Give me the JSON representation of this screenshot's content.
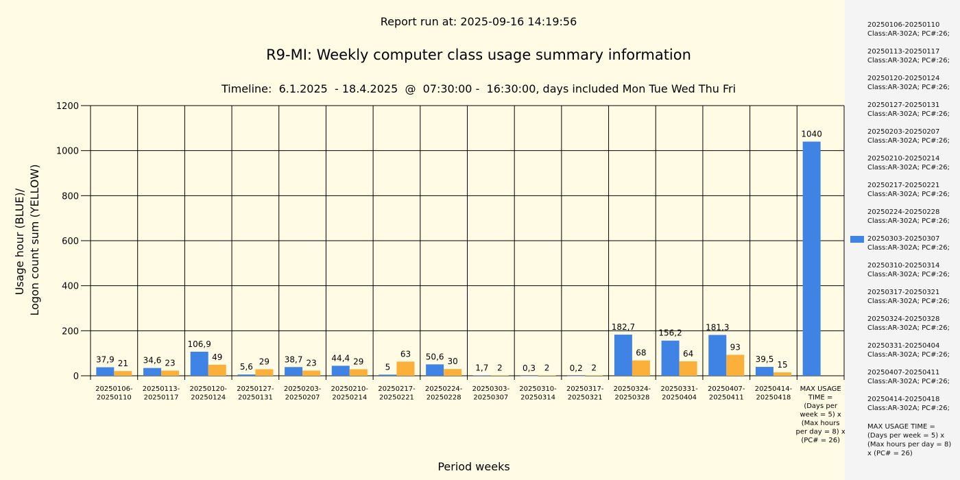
{
  "header": {
    "report_run": "Report run at: 2025-09-16 14:19:56",
    "timeline": "Timeline:  6.1.2025  - 18.4.2025  @  07:30:00 -  16:30:00, days included Mon Tue Wed Thu Fri"
  },
  "colors": {
    "usage_bar": "#3f84e5",
    "logon_bar": "#fbb03b",
    "plot_background": "#fffbe4",
    "legend_background": "#f4f4f4"
  },
  "legend": {
    "position": "right",
    "highlighted_index": 8,
    "items": [
      "20250106-20250110\nClass:AR-302A; PC#:26;",
      "20250113-20250117\nClass:AR-302A; PC#:26;",
      "20250120-20250124\nClass:AR-302A; PC#:26;",
      "20250127-20250131\nClass:AR-302A; PC#:26;",
      "20250203-20250207\nClass:AR-302A; PC#:26;",
      "20250210-20250214\nClass:AR-302A; PC#:26;",
      "20250217-20250221\nClass:AR-302A; PC#:26;",
      "20250224-20250228\nClass:AR-302A; PC#:26;",
      "20250303-20250307\nClass:AR-302A; PC#:26;",
      "20250310-20250314\nClass:AR-302A; PC#:26;",
      "20250317-20250321\nClass:AR-302A; PC#:26;",
      "20250324-20250328\nClass:AR-302A; PC#:26;",
      "20250331-20250404\nClass:AR-302A; PC#:26;",
      "20250407-20250411\nClass:AR-302A; PC#:26;",
      "20250414-20250418\nClass:AR-302A; PC#:26;",
      "MAX USAGE TIME =\n (Days per week = 5) x (Max hours per day = 8) x (PC# = 26)"
    ]
  },
  "chart_data": {
    "type": "bar",
    "title": "R9-MI: Weekly computer class usage summary information",
    "xlabel": "Period weeks",
    "ylabel": [
      "Usage hour (BLUE)/",
      "Logon count sum (YELLOW)"
    ],
    "ylim": [
      0,
      1200
    ],
    "yticks": [
      0,
      200,
      400,
      600,
      800,
      1000,
      1200
    ],
    "grid": true,
    "categories": [
      [
        "20250106-",
        "20250110"
      ],
      [
        "20250113-",
        "20250117"
      ],
      [
        "20250120-",
        "20250124"
      ],
      [
        "20250127-",
        "20250131"
      ],
      [
        "20250203-",
        "20250207"
      ],
      [
        "20250210-",
        "20250214"
      ],
      [
        "20250217-",
        "20250221"
      ],
      [
        "20250224-",
        "20250228"
      ],
      [
        "20250303-",
        "20250307"
      ],
      [
        "20250310-",
        "20250314"
      ],
      [
        "20250317-",
        "20250321"
      ],
      [
        "20250324-",
        "20250328"
      ],
      [
        "20250331-",
        "20250404"
      ],
      [
        "20250407-",
        "20250411"
      ],
      [
        "20250414-",
        "20250418"
      ],
      [
        "MAX USAGE",
        "TIME =",
        "(Days per",
        "week = 5) x",
        "(Max hours",
        "per day = 8) x",
        "(PC# = 26)"
      ]
    ],
    "series": [
      {
        "color": "#3f84e5",
        "values": [
          37.9,
          34.6,
          106.9,
          5.6,
          38.7,
          44.4,
          5,
          50.6,
          1.7,
          0.3,
          0.2,
          182.7,
          156.2,
          181.3,
          39.5,
          1040
        ],
        "labels": [
          "37,9",
          "34,6",
          "106,9",
          "5,6",
          "38,7",
          "44,4",
          "5",
          "50,6",
          "1,7",
          "0,3",
          "0,2",
          "182,7",
          "156,2",
          "181,3",
          "39,5",
          "1040"
        ]
      },
      {
        "color": "#fbb03b",
        "values": [
          21,
          23,
          49,
          29,
          23,
          29,
          63,
          30,
          2,
          2,
          2,
          68,
          64,
          93,
          15,
          null
        ],
        "labels": [
          "21",
          "23",
          "49",
          "29",
          "23",
          "29",
          "63",
          "30",
          "2",
          "2",
          "2",
          "68",
          "64",
          "93",
          "15",
          null
        ]
      }
    ]
  }
}
